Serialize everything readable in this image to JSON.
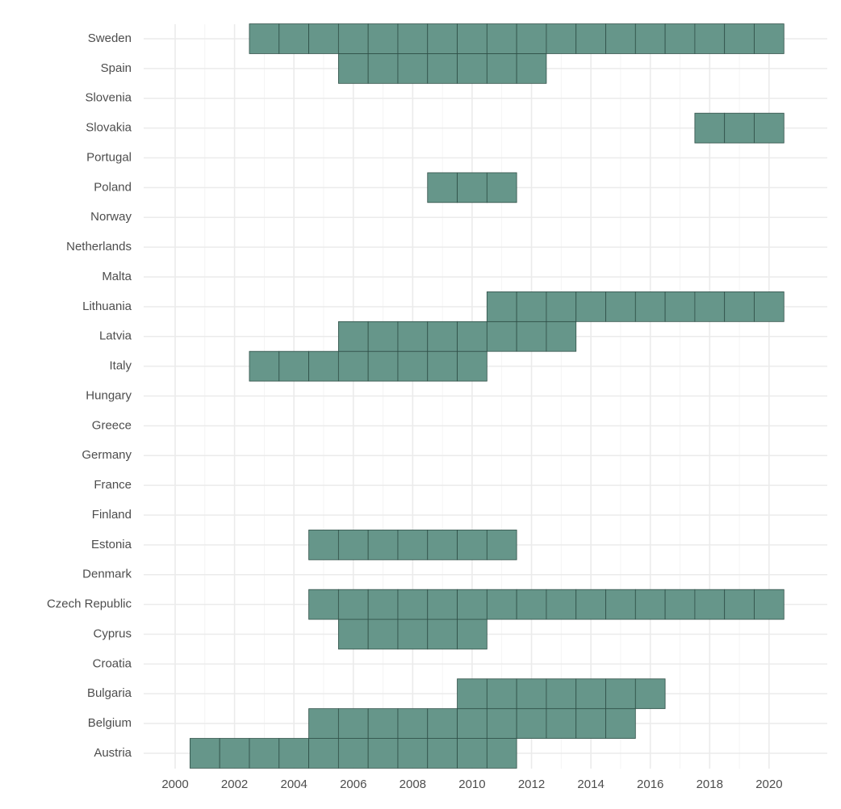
{
  "chart_data": {
    "type": "tile",
    "categories": [
      "Austria",
      "Belgium",
      "Bulgaria",
      "Croatia",
      "Cyprus",
      "Czech Republic",
      "Denmark",
      "Estonia",
      "Finland",
      "France",
      "Germany",
      "Greece",
      "Hungary",
      "Italy",
      "Latvia",
      "Lithuania",
      "Malta",
      "Netherlands",
      "Norway",
      "Poland",
      "Portugal",
      "Slovakia",
      "Slovenia",
      "Spain",
      "Sweden"
    ],
    "years": [
      [
        2001,
        2002,
        2003,
        2004,
        2005,
        2006,
        2007,
        2008,
        2009,
        2010,
        2011
      ],
      [
        2005,
        2006,
        2007,
        2008,
        2009,
        2010,
        2011,
        2012,
        2013,
        2014,
        2015
      ],
      [
        2010,
        2011,
        2012,
        2013,
        2014,
        2015,
        2016
      ],
      [],
      [
        2006,
        2007,
        2008,
        2009,
        2010
      ],
      [
        2005,
        2006,
        2007,
        2008,
        2009,
        2010,
        2011,
        2012,
        2013,
        2014,
        2015,
        2016,
        2017,
        2018,
        2019,
        2020
      ],
      [],
      [
        2005,
        2006,
        2007,
        2008,
        2009,
        2010,
        2011
      ],
      [],
      [],
      [],
      [],
      [],
      [
        2003,
        2004,
        2005,
        2006,
        2007,
        2008,
        2009,
        2010
      ],
      [
        2006,
        2007,
        2008,
        2009,
        2010,
        2011,
        2012,
        2013
      ],
      [
        2011,
        2012,
        2013,
        2014,
        2015,
        2016,
        2017,
        2018,
        2019,
        2020
      ],
      [],
      [],
      [],
      [
        2009,
        2010,
        2011
      ],
      [],
      [
        2018,
        2019,
        2020
      ],
      [],
      [
        2006,
        2007,
        2008,
        2009,
        2010,
        2011,
        2012
      ],
      [
        2003,
        2004,
        2005,
        2006,
        2007,
        2008,
        2009,
        2010,
        2011,
        2012,
        2013,
        2014,
        2015,
        2016,
        2017,
        2018,
        2019,
        2020
      ]
    ],
    "color": "#66968a",
    "xlim": [
      1998.94,
      2021.96
    ],
    "xticks": [
      2000,
      2002,
      2004,
      2006,
      2008,
      2010,
      2012,
      2014,
      2016,
      2018,
      2020
    ],
    "grid": true
  }
}
